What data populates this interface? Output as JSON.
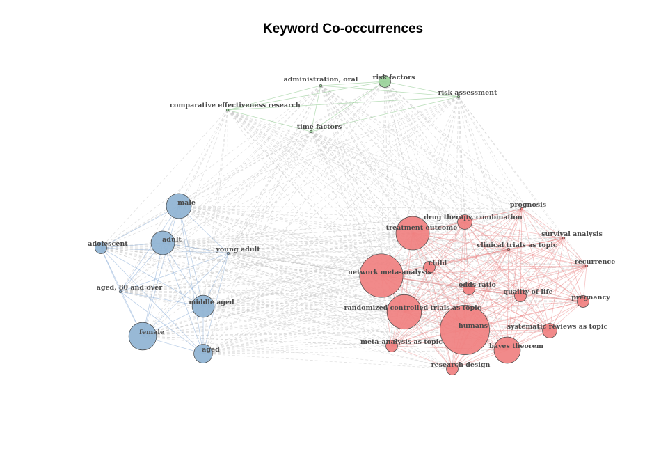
{
  "title": "Keyword Co-occurrences",
  "colors": {
    "blue_fill": "#8fb3d3",
    "red_fill": "#f08080",
    "green_fill": "#9bd39b",
    "blue_edge": "#8fb0d8",
    "red_edge": "#e87a7a",
    "green_edge": "#8cc88c",
    "grey_edge": "#c8c8c8",
    "node_stroke": "#444444"
  },
  "nodes": [
    {
      "id": "administration_oral",
      "label": "administration, oral",
      "cluster": "green",
      "weight": 1
    },
    {
      "id": "risk_factors",
      "label": "risk factors",
      "cluster": "green",
      "weight": 2
    },
    {
      "id": "risk_assessment",
      "label": "risk assessment",
      "cluster": "green",
      "weight": 1
    },
    {
      "id": "comparative_effectiveness_research",
      "label": "comparative effectiveness research",
      "cluster": "green",
      "weight": 1
    },
    {
      "id": "time_factors",
      "label": "time factors",
      "cluster": "green",
      "weight": 1
    },
    {
      "id": "male",
      "label": "male",
      "cluster": "blue",
      "weight": 9
    },
    {
      "id": "adult",
      "label": "adult",
      "cluster": "blue",
      "weight": 8
    },
    {
      "id": "adolescent",
      "label": "adolescent",
      "cluster": "blue",
      "weight": 2
    },
    {
      "id": "young_adult",
      "label": "young adult",
      "cluster": "blue",
      "weight": 1
    },
    {
      "id": "aged_80",
      "label": "aged, 80 and over",
      "cluster": "blue",
      "weight": 1
    },
    {
      "id": "middle_aged",
      "label": "middle aged",
      "cluster": "blue",
      "weight": 7
    },
    {
      "id": "female",
      "label": "female",
      "cluster": "blue",
      "weight": 11
    },
    {
      "id": "aged",
      "label": "aged",
      "cluster": "blue",
      "weight": 5
    },
    {
      "id": "prognosis",
      "label": "prognosis",
      "cluster": "red",
      "weight": 1
    },
    {
      "id": "drug_therapy_combination",
      "label": "drug therapy, combination",
      "cluster": "red",
      "weight": 3
    },
    {
      "id": "treatment_outcome",
      "label": "treatment outcome",
      "cluster": "red",
      "weight": 16
    },
    {
      "id": "survival_analysis",
      "label": "survival analysis",
      "cluster": "red",
      "weight": 1
    },
    {
      "id": "clinical_trials_as_topic",
      "label": "clinical trials as topic",
      "cluster": "red",
      "weight": 1
    },
    {
      "id": "child",
      "label": "child",
      "cluster": "red",
      "weight": 2
    },
    {
      "id": "recurrence",
      "label": "recurrence",
      "cluster": "red",
      "weight": 1
    },
    {
      "id": "network_meta_analysis",
      "label": "network meta-analysis",
      "cluster": "red",
      "weight": 27
    },
    {
      "id": "odds_ratio",
      "label": "odds ratio",
      "cluster": "red",
      "weight": 2
    },
    {
      "id": "quality_of_life",
      "label": "quality of life",
      "cluster": "red",
      "weight": 2
    },
    {
      "id": "pregnancy",
      "label": "pregnancy",
      "cluster": "red",
      "weight": 2
    },
    {
      "id": "randomized_controlled_trials",
      "label": "randomized controlled trials as topic",
      "cluster": "red",
      "weight": 17
    },
    {
      "id": "humans",
      "label": "humans",
      "cluster": "red",
      "weight": 35
    },
    {
      "id": "systematic_reviews",
      "label": "systematic reviews as topic",
      "cluster": "red",
      "weight": 3
    },
    {
      "id": "meta_analysis_as_topic",
      "label": "meta-analysis as topic",
      "cluster": "red",
      "weight": 2
    },
    {
      "id": "bayes_theorem",
      "label": "bayes theorem",
      "cluster": "red",
      "weight": 10
    },
    {
      "id": "research_design",
      "label": "research design",
      "cluster": "red",
      "weight": 2
    }
  ]
}
